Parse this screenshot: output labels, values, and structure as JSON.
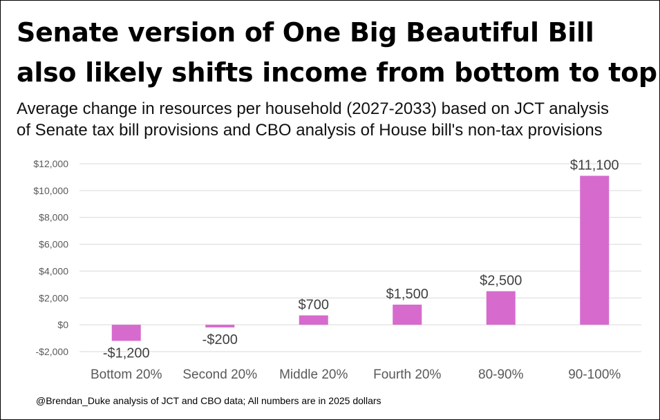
{
  "title_lines": [
    "Senate version of One Big Beautiful Bill",
    "also likely shifts income from bottom to top"
  ],
  "subtitle_lines": [
    "Average change in resources per household (2027-2033) based on JCT analysis",
    "of Senate tax bill provisions and CBO analysis of House bill's non-tax provisions"
  ],
  "footnote": "@Brendan_Duke analysis of JCT and CBO data; All numbers are in 2025 dollars",
  "colors": {
    "bar": "#d66bcd",
    "grid": "#d9d9d9",
    "axis_text": "#595959",
    "label_text": "#404040"
  },
  "chart_data": {
    "type": "bar",
    "title": "Senate version of One Big Beautiful Bill also likely shifts income from bottom to top",
    "xlabel": "",
    "ylabel": "",
    "categories": [
      "Bottom 20%",
      "Second 20%",
      "Middle 20%",
      "Fourth 20%",
      "80-90%",
      "90-100%"
    ],
    "values": [
      -1200,
      -200,
      700,
      1500,
      2500,
      11100
    ],
    "data_labels": [
      "-$1,200",
      "-$200",
      "$700",
      "$1,500",
      "$2,500",
      "$11,100"
    ],
    "yticks": [
      -2000,
      0,
      2000,
      4000,
      6000,
      8000,
      10000,
      12000
    ],
    "ytick_labels": [
      "-$2,000",
      "$0",
      "$2,000",
      "$4,000",
      "$6,000",
      "$8,000",
      "$10,000",
      "$12,000"
    ],
    "ylim": [
      -2000,
      12000
    ],
    "grid": true,
    "legend": "none"
  }
}
